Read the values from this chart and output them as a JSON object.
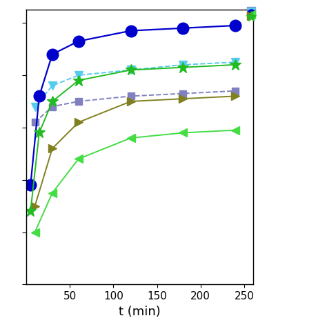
{
  "title": "",
  "xlabel": "t (min)",
  "ylabel": "",
  "xlim": [
    0,
    260
  ],
  "series": [
    {
      "label": "",
      "x": [
        10,
        30,
        60,
        120,
        180,
        240
      ],
      "y": [
        62,
        68,
        70,
        72,
        73,
        74
      ],
      "color": "#8080C0",
      "linestyle": "--",
      "marker": "s",
      "markersize": 7,
      "linewidth": 1.4,
      "markerfacecolor": "#8080C0",
      "markeredgecolor": "#8080C0"
    },
    {
      "label": "",
      "x": [
        10,
        30,
        60,
        120,
        180,
        240
      ],
      "y": [
        68,
        76,
        80,
        82,
        84,
        85
      ],
      "color": "#55CCEE",
      "linestyle": "--",
      "marker": "v",
      "markersize": 9,
      "linewidth": 1.4,
      "markerfacecolor": "#55CCEE",
      "markeredgecolor": "#55CCEE"
    },
    {
      "label": "",
      "x": [
        5,
        15,
        30,
        60,
        120,
        180,
        240
      ],
      "y": [
        38,
        72,
        88,
        93,
        97,
        98,
        99
      ],
      "color": "#0000CC",
      "linestyle": "-",
      "marker": "o",
      "markersize": 12,
      "linewidth": 1.6,
      "markerfacecolor": "#0000CC",
      "markeredgecolor": "#0000CC"
    },
    {
      "label": "",
      "x": [
        10,
        30,
        60,
        120,
        180,
        240
      ],
      "y": [
        20,
        35,
        48,
        56,
        58,
        59
      ],
      "color": "#44DD44",
      "linestyle": "-",
      "marker": "<",
      "markersize": 9,
      "linewidth": 1.4,
      "markerfacecolor": "#44DD44",
      "markeredgecolor": "#44DD44"
    },
    {
      "label": "",
      "x": [
        10,
        30,
        60,
        120,
        180,
        240
      ],
      "y": [
        30,
        52,
        62,
        70,
        71,
        72
      ],
      "color": "#808020",
      "linestyle": "-",
      "marker": ">",
      "markersize": 9,
      "linewidth": 1.4,
      "markerfacecolor": "#808020",
      "markeredgecolor": "#808020"
    },
    {
      "label": "",
      "x": [
        5,
        15,
        30,
        60,
        120,
        180,
        240
      ],
      "y": [
        28,
        58,
        70,
        78,
        82,
        83,
        84
      ],
      "color": "#22BB22",
      "linestyle": "-",
      "marker": "*",
      "markersize": 12,
      "linewidth": 1.4,
      "markerfacecolor": "#22BB22",
      "markeredgecolor": "#22BB22"
    }
  ],
  "xticks": [
    50,
    100,
    150,
    200,
    250
  ],
  "background_color": "#ffffff",
  "legend_marker_colors": [
    "#8080C0",
    "#55CCEE",
    "#0000CC",
    "#44DD44",
    "#808020",
    "#22BB22"
  ],
  "legend_markers": [
    "s",
    "v",
    "o",
    "<",
    ">",
    "*"
  ],
  "legend_linestyls": [
    "--",
    "--",
    "-",
    "-",
    "-",
    "-"
  ]
}
